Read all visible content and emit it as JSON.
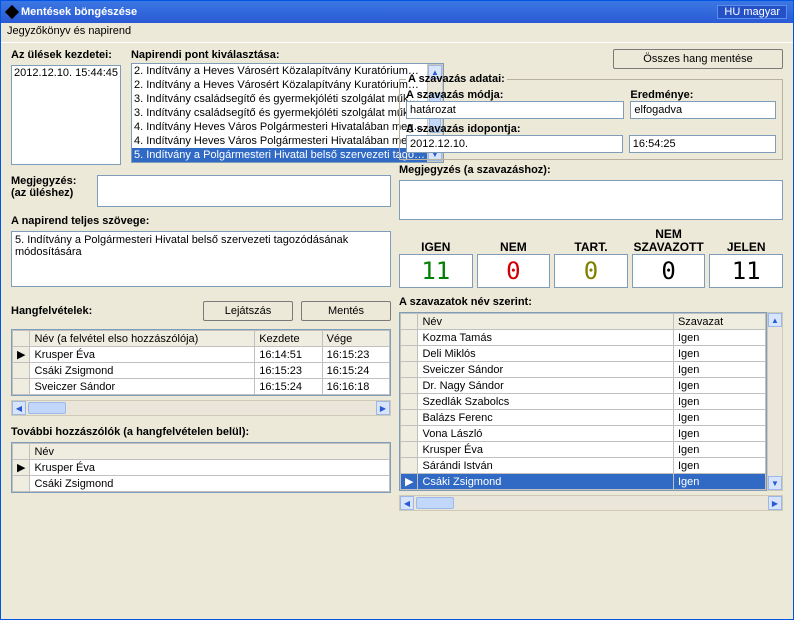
{
  "window_title": "Mentések böngészése",
  "lang_label": "HU magyar",
  "menubar": "Jegyzőkönyv és napirend",
  "left": {
    "sessions_label": "Az ülések kezdetei:",
    "session_value": "2012.12.10.   15:44:45",
    "comment_label": "Megjegyzés:",
    "comment_label2": "(az üléshez)",
    "agenda_full_label": "A napirend teljes szövege:",
    "agenda_full_text": "5. Indítvány a Polgármesteri Hivatal belső szervezeti tagozódásának módosítására",
    "rec_label": "Hangfelvételek:",
    "btn_play": "Lejátszás",
    "btn_save": "Mentés",
    "rec_cols": [
      "Név (a felvétel elso hozzászólója)",
      "Kezdete",
      "Vége"
    ],
    "rec_rows": [
      [
        "Krusper Éva",
        "16:14:51",
        "16:15:23"
      ],
      [
        "Csáki Zsigmond",
        "16:15:23",
        "16:15:24"
      ],
      [
        "Sveiczer Sándor",
        "16:15:24",
        "16:16:18"
      ]
    ],
    "more_label": "További hozzászólók (a hangfelvételen belül):",
    "more_col": "Név",
    "more_rows": [
      "Krusper Éva",
      "Csáki Zsigmond"
    ]
  },
  "mid": {
    "agenda_label": "Napirendi pont kiválasztása:",
    "agenda_items": [
      "2. Indítvány a Heves Városért Közalapítvány Kuratórium…",
      "2. Indítvány a Heves Városért Közalapítvány Kuratórium…",
      "3. Indítvány családsegítő és gyermekjóléti szolgálat műk…",
      "3. Indítvány családsegítő és gyermekjóléti szolgálat műk…",
      "4. Indítvány Heves Város Polgármesteri Hivatalában meg…",
      "4. Indítvány Heves Város Polgármesteri Hivatalában meg…",
      "5. Indítvány a Polgármesteri Hivatal belső szervezeti tago…",
      "5. Indítvány a Polgármesteri Hivatal belső szervezeti tago…"
    ],
    "agenda_selected_index": 6
  },
  "right": {
    "btn_saveall": "Összes hang mentése",
    "groupbox_title": "A szavazás adatai:",
    "mode_label": "A szavazás módja:",
    "mode_value": "határozat",
    "result_label": "Eredménye:",
    "result_value": "elfogadva",
    "time_label": "A szavazás idopontja:",
    "time_date": "2012.12.10.",
    "time_time": "16:54:25",
    "note_label": "Megjegyzés  (a szavazáshoz):",
    "vote_headers": [
      "IGEN",
      "NEM",
      "TART.",
      "NEM SZAVAZOTT",
      "JELEN"
    ],
    "vote_values": [
      "11",
      "0",
      "0",
      "0",
      "11"
    ],
    "vote_colors": [
      "#008000",
      "#d00000",
      "#808000",
      "#000000",
      "#000000"
    ],
    "byname_label": "A szavazatok név szerint:",
    "byname_cols": [
      "Név",
      "Szavazat"
    ],
    "byname_rows": [
      [
        "Kozma Tamás",
        "Igen"
      ],
      [
        "Deli Miklós",
        "Igen"
      ],
      [
        "Sveiczer Sándor",
        "Igen"
      ],
      [
        "Dr. Nagy Sándor",
        "Igen"
      ],
      [
        "Szedlák Szabolcs",
        "Igen"
      ],
      [
        "Balázs Ferenc",
        "Igen"
      ],
      [
        "Vona László",
        "Igen"
      ],
      [
        "Krusper Éva",
        "Igen"
      ],
      [
        "Sárándi István",
        "Igen"
      ],
      [
        "Csáki Zsigmond",
        "Igen"
      ]
    ],
    "byname_selected_index": 9
  }
}
